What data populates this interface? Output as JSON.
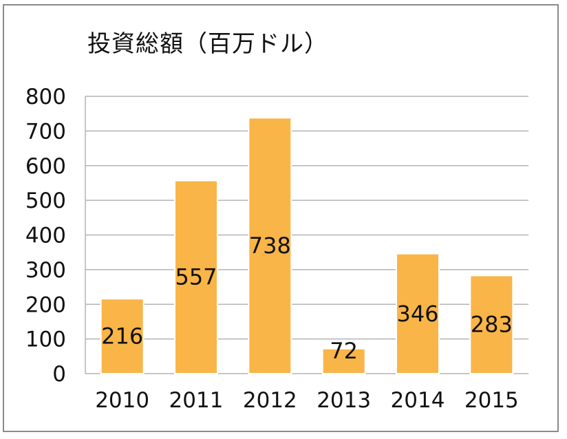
{
  "chart_data": {
    "type": "bar",
    "title": "投資総額（百万ドル）",
    "categories": [
      "2010",
      "2011",
      "2012",
      "2013",
      "2014",
      "2015"
    ],
    "values": [
      216,
      557,
      738,
      72,
      346,
      283
    ],
    "data_labels": [
      "216",
      "557",
      "738",
      "72",
      "346",
      "283"
    ],
    "ylim": [
      0,
      800
    ],
    "yticks": [
      "0",
      "100",
      "200",
      "300",
      "400",
      "500",
      "600",
      "700",
      "800"
    ],
    "grid": true,
    "legend": "none",
    "bar_color": "#F9B548",
    "bar_edge_color": "#FFFFFF",
    "grid_color": "#B3B3B3"
  }
}
